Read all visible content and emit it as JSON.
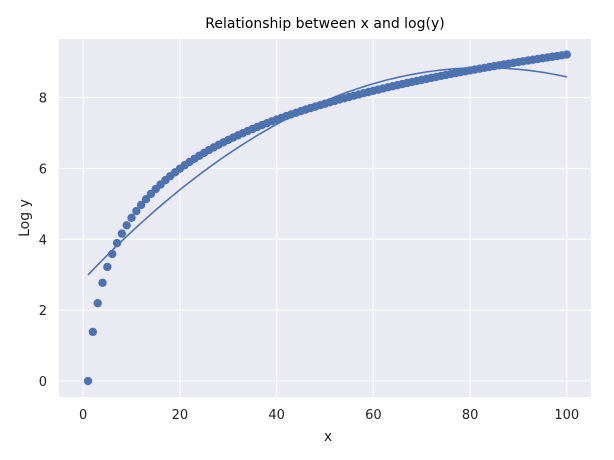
{
  "chart_data": {
    "type": "scatter",
    "title": "Relationship between x and log(y)",
    "xlabel": "x",
    "ylabel": "Log y",
    "xlim": [
      -5,
      105
    ],
    "ylim": [
      -0.45,
      9.65
    ],
    "xticks": [
      0,
      20,
      40,
      60,
      80,
      100
    ],
    "yticks": [
      0,
      2,
      4,
      6,
      8
    ],
    "grid": true,
    "background": "#eaeaf2",
    "grid_color": "#ffffff",
    "series": [
      {
        "kind": "scatter",
        "x_start": 1,
        "x_end": 100,
        "x_step": 1,
        "y_formula": "2*ln(x)",
        "color": "#4c72b0"
      },
      {
        "kind": "line",
        "x_start": 1,
        "x_end": 100,
        "x_step": 1,
        "y_formula": "quadratic fit",
        "coefficients": [
          2.85,
          0.1448,
          -0.000875
        ],
        "color": "#4c72b0"
      }
    ]
  }
}
